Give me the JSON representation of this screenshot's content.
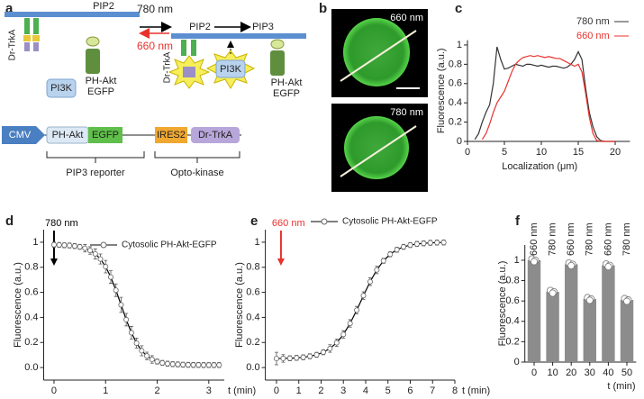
{
  "panel_labels": [
    "a",
    "b",
    "c",
    "d",
    "e",
    "f"
  ],
  "diagram": {
    "membrane_left": "PIP2",
    "light_on": "780 nm",
    "light_off": "660 nm",
    "membrane_right": [
      "PIP2",
      "PIP3"
    ],
    "receptor": [
      "Dr-TrkA",
      "Dr-TrkA"
    ],
    "kinase": [
      "PI3K",
      "PI3K"
    ],
    "reporter": [
      [
        "PH-Akt",
        "EGFP"
      ],
      [
        "PH-Akt",
        "EGFP"
      ]
    ],
    "construct": [
      "CMV",
      "PH-Akt",
      "EGFP",
      "IRES2",
      "Dr-TrkA"
    ],
    "brackets": [
      "PIP3 reporter",
      "Opto-kinase"
    ]
  },
  "images": [
    {
      "label": "660 nm"
    },
    {
      "label": "780 nm"
    }
  ],
  "chart_data": [
    {
      "type": "line",
      "xlabel": "Localization (μm)",
      "ylabel": "Fluorescence (a.u.)",
      "x": [
        0,
        0.5,
        1,
        1.5,
        2,
        2.5,
        3,
        3.5,
        4,
        4.5,
        5,
        5.5,
        6,
        6.5,
        7,
        7.5,
        8,
        8.5,
        9,
        9.5,
        10,
        10.5,
        11,
        11.5,
        12,
        12.5,
        13,
        13.5,
        14,
        14.5,
        15,
        15.5,
        16,
        16.5,
        17,
        17.5,
        18,
        18.5,
        19,
        19.5,
        20
      ],
      "series": [
        {
          "name": "780 nm",
          "color": "#333333",
          "values": [
            null,
            null,
            0.02,
            0.08,
            0.2,
            0.3,
            0.38,
            0.6,
            0.98,
            0.85,
            0.75,
            0.76,
            0.78,
            0.8,
            0.79,
            0.78,
            0.8,
            0.8,
            0.79,
            0.78,
            0.79,
            0.78,
            0.77,
            0.78,
            0.78,
            0.77,
            0.76,
            0.77,
            0.8,
            0.85,
            0.93,
            0.85,
            0.55,
            0.3,
            0.15,
            0.05,
            0.01,
            0,
            0,
            0,
            0
          ]
        },
        {
          "name": "660 nm",
          "color": "#e8322d",
          "values": [
            null,
            null,
            null,
            null,
            0.02,
            0.08,
            0.18,
            0.3,
            0.4,
            0.46,
            0.52,
            0.62,
            0.72,
            0.8,
            0.84,
            0.87,
            0.88,
            0.89,
            0.88,
            0.89,
            0.88,
            0.87,
            0.88,
            0.87,
            0.86,
            0.86,
            0.84,
            0.82,
            0.8,
            0.78,
            0.8,
            0.72,
            0.5,
            0.25,
            0.08,
            0.01,
            0,
            0,
            0,
            0,
            0
          ]
        }
      ],
      "xlim": [
        0,
        22
      ],
      "ylim": [
        0,
        1.05
      ],
      "xticks": [
        0,
        5,
        10,
        15,
        20
      ],
      "yticks": [
        0,
        0.2,
        0.4,
        0.6,
        0.8,
        1
      ]
    },
    {
      "type": "line",
      "markers": true,
      "xlabel": "t (min)",
      "ylabel": "Fluorescence (a.u.)",
      "stimulus": {
        "label": "780 nm",
        "x": 0,
        "color": "#000000"
      },
      "x": [
        0,
        0.1,
        0.2,
        0.3,
        0.4,
        0.5,
        0.6,
        0.7,
        0.8,
        0.9,
        1,
        1.1,
        1.2,
        1.3,
        1.4,
        1.5,
        1.6,
        1.7,
        1.8,
        1.9,
        2,
        2.1,
        2.2,
        2.3,
        2.4,
        2.5,
        2.6,
        2.7,
        2.8,
        2.9,
        3,
        3.1,
        3.2
      ],
      "series": [
        {
          "name": "Cytosolic PH-Akt-EGFP",
          "color": "#000000",
          "values": [
            0.98,
            0.978,
            0.976,
            0.974,
            0.969,
            0.963,
            0.952,
            0.934,
            0.907,
            0.866,
            0.805,
            0.722,
            0.617,
            0.5,
            0.382,
            0.278,
            0.195,
            0.134,
            0.093,
            0.065,
            0.048,
            0.037,
            0.031,
            0.027,
            0.025,
            0.023,
            0.022,
            0.021,
            0.021,
            0.02,
            0.02,
            0.02,
            0.02
          ],
          "errors": [
            0.02,
            0.02,
            0.02,
            0.02,
            0.02,
            0.02,
            0.03,
            0.03,
            0.04,
            0.04,
            0.05,
            0.05,
            0.05,
            0.06,
            0.05,
            0.05,
            0.04,
            0.04,
            0.03,
            0.03,
            0.02,
            0.02,
            0.02,
            0.02,
            0.02,
            0.02,
            0.02,
            0.02,
            0.02,
            0.02,
            0.02,
            0.02,
            0.02
          ]
        }
      ],
      "xlim": [
        -0.2,
        3.3
      ],
      "ylim": [
        -0.1,
        1.1
      ],
      "xticks": [
        0,
        1,
        2,
        3
      ],
      "yticks": [
        {
          "value": 0,
          "label": "0.0"
        },
        0.2,
        0.4,
        0.6,
        0.8,
        1
      ]
    },
    {
      "type": "line",
      "markers": true,
      "xlabel": "t (min)",
      "ylabel": "Fluorescence (a.u.)",
      "stimulus": {
        "label": "660 nm",
        "x": 0.2,
        "color": "#e8322d"
      },
      "x": [
        0,
        0.3,
        0.6,
        0.9,
        1.2,
        1.5,
        1.8,
        2.1,
        2.4,
        2.7,
        3,
        3.3,
        3.6,
        3.9,
        4.2,
        4.5,
        4.8,
        5.1,
        5.4,
        5.7,
        6,
        6.3,
        6.6,
        6.9,
        7.2,
        7.5
      ],
      "series": [
        {
          "name": "Cytosolic PH-Akt-EGFP",
          "color": "#000000",
          "values": [
            0.072,
            0.073,
            0.074,
            0.077,
            0.082,
            0.09,
            0.102,
            0.122,
            0.152,
            0.198,
            0.264,
            0.352,
            0.458,
            0.574,
            0.685,
            0.779,
            0.852,
            0.904,
            0.94,
            0.963,
            0.977,
            0.986,
            0.991,
            0.995,
            0.997,
            0.998
          ],
          "errors": [
            0.05,
            0.03,
            0.02,
            0.02,
            0.02,
            0.02,
            0.02,
            0.02,
            0.03,
            0.03,
            0.03,
            0.03,
            0.03,
            0.03,
            0.03,
            0.03,
            0.02,
            0.02,
            0.02,
            0.02,
            0.02,
            0.02,
            0.02,
            0.02,
            0.02,
            0.02
          ]
        }
      ],
      "xlim": [
        -0.5,
        8
      ],
      "ylim": [
        -0.1,
        1.1
      ],
      "xticks": [
        0,
        1,
        2,
        3,
        4,
        5,
        6,
        7,
        8
      ],
      "yticks": [
        {
          "value": 0,
          "label": "0.0"
        },
        0.2,
        0.4,
        0.6,
        0.8,
        1
      ]
    },
    {
      "type": "bar",
      "xlabel": "t (min)",
      "ylabel": "Fluorescence (a.u.)",
      "color": "#8c8c8c",
      "x": [
        0,
        10,
        20,
        30,
        40,
        50
      ],
      "values": [
        1,
        0.69,
        0.96,
        0.62,
        0.95,
        0.61
      ],
      "annotations": [
        "660 nm",
        "780 nm",
        "660 nm",
        "780 nm",
        "660 nm",
        "780 nm"
      ],
      "xlim": [
        -5,
        55
      ],
      "ylim": [
        0,
        1.15
      ],
      "xticks": [
        0,
        10,
        20,
        30,
        40,
        50
      ],
      "yticks": [
        0,
        0.2,
        0.4,
        0.6,
        0.8,
        1
      ]
    }
  ]
}
